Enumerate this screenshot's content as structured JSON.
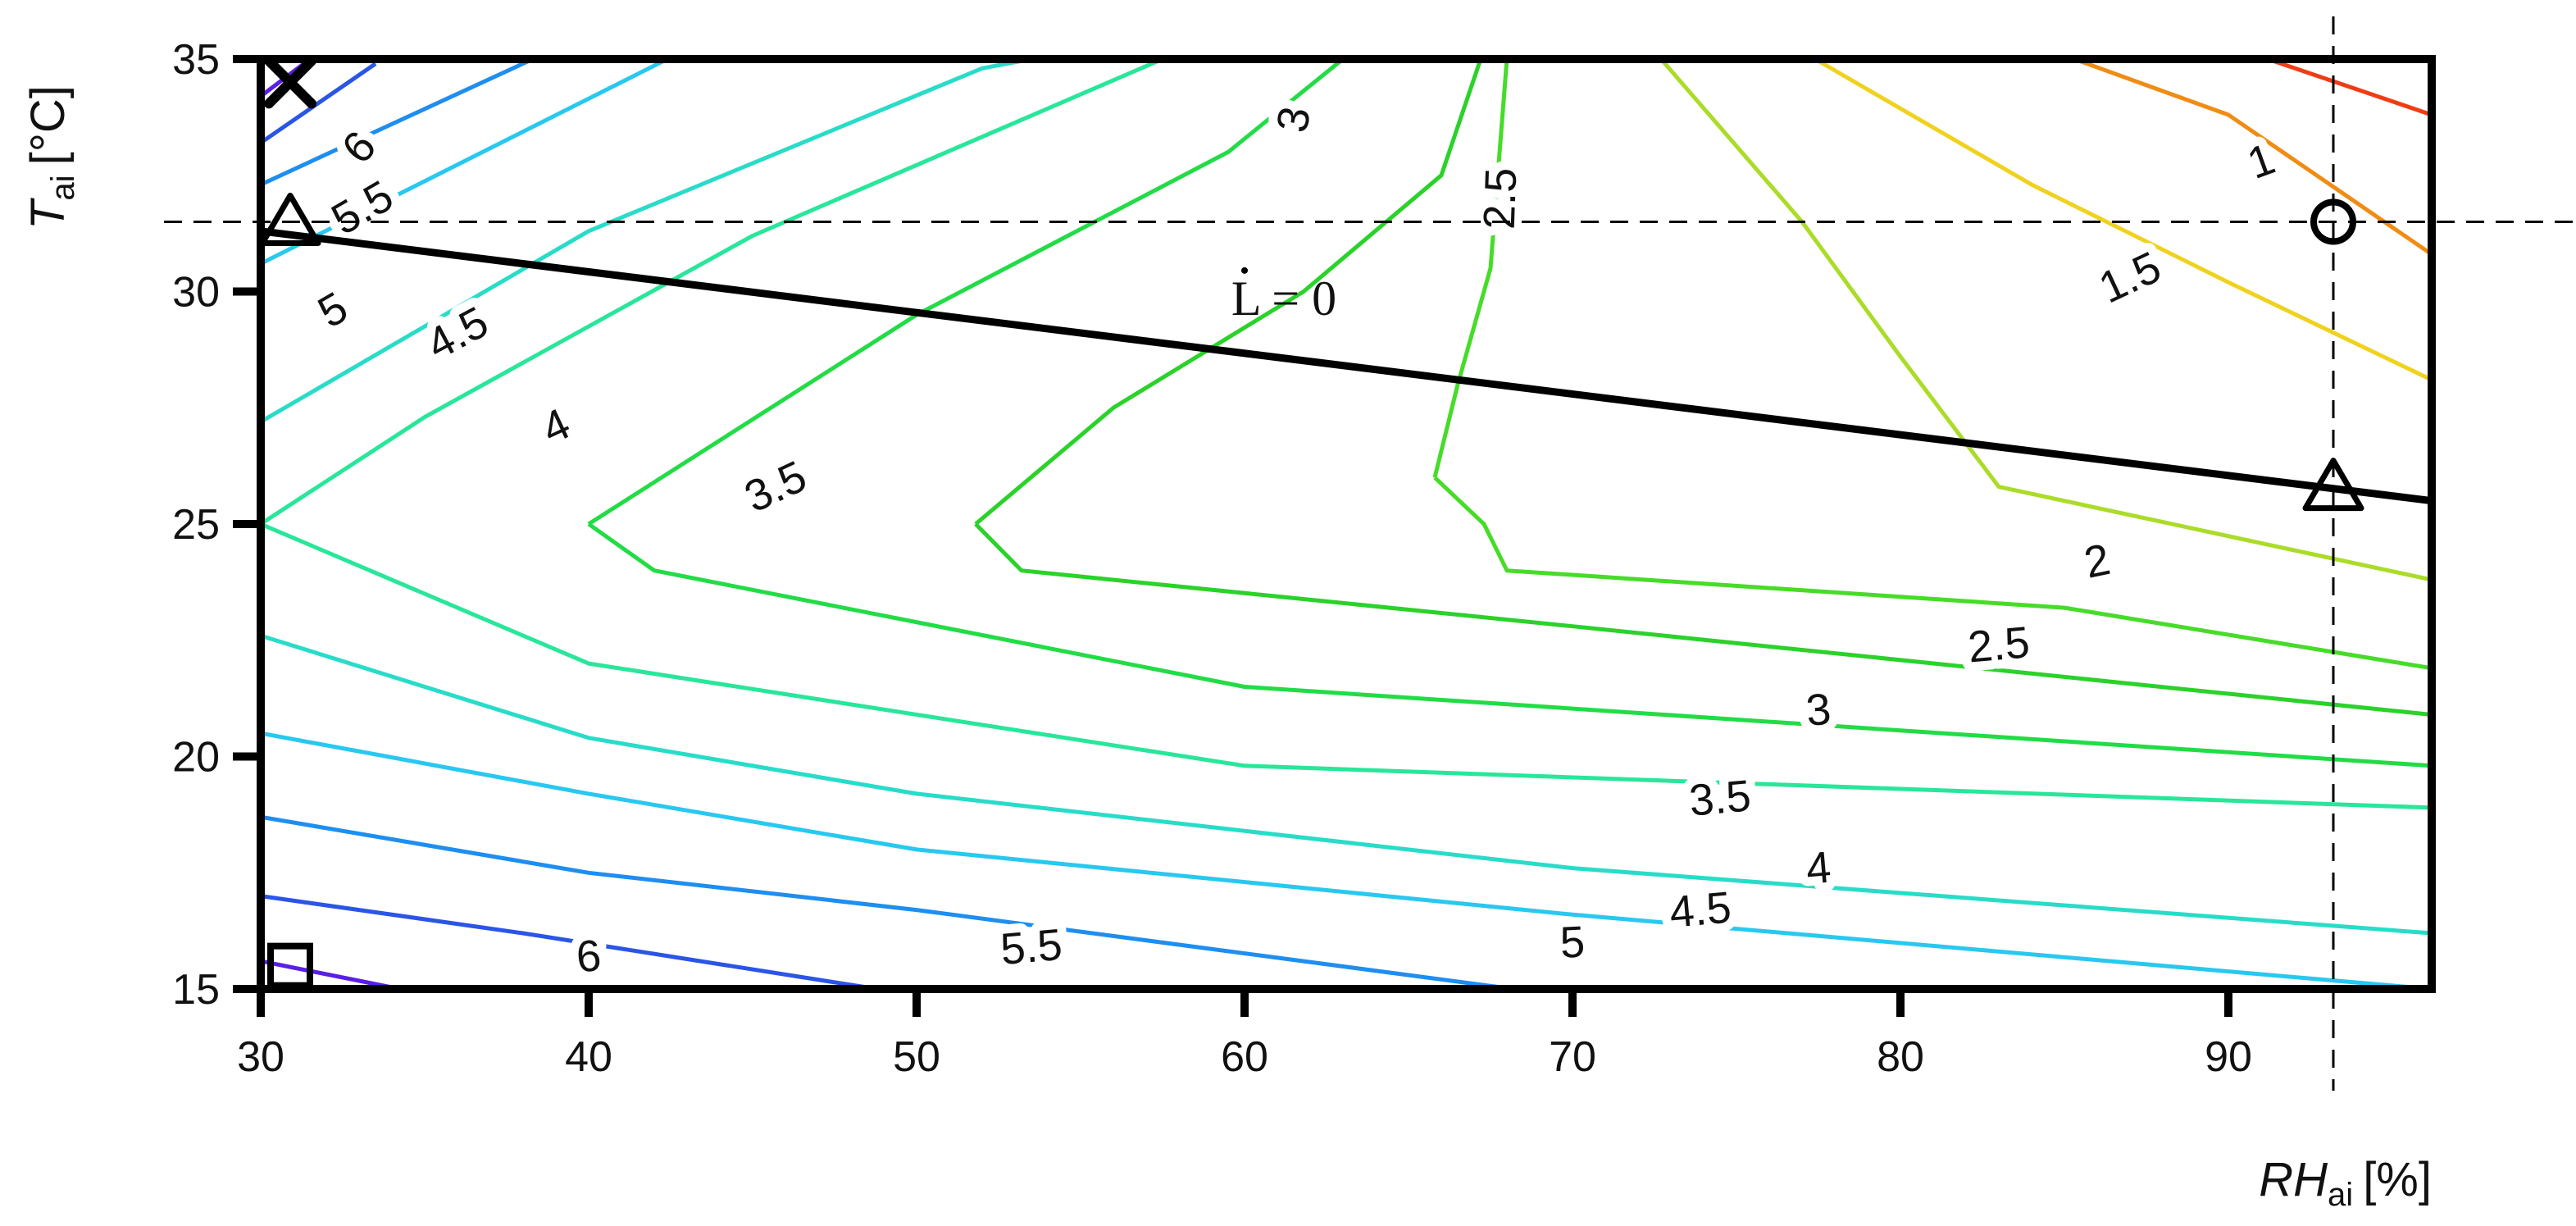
{
  "chart_data": {
    "type": "contour",
    "title": "",
    "xlabel": {
      "main": "RH",
      "sub": "ai",
      "unit": "[%]"
    },
    "ylabel": {
      "main": "T",
      "sub": "ai",
      "unit": "[°C]"
    },
    "xlim": [
      30,
      96.2
    ],
    "ylim": [
      15,
      35
    ],
    "xticks": [
      30,
      40,
      50,
      60,
      70,
      80,
      90
    ],
    "yticks": [
      15,
      20,
      25,
      30,
      35
    ],
    "xtick_labels": [
      "30",
      "40",
      "50",
      "60",
      "70",
      "80",
      "90"
    ],
    "ytick_labels": [
      "15",
      "20",
      "25",
      "30",
      "35"
    ],
    "grid": false,
    "levels": [
      {
        "level": 6.5,
        "color": "#5a1ee6",
        "points": [
          [
            30.0,
            34.2
          ],
          [
            31.5,
            35.0
          ]
        ]
      },
      {
        "level": 6.5,
        "color": "#5a1ee6",
        "points": [
          [
            30.0,
            15.6
          ],
          [
            34.6,
            14.95
          ]
        ]
      },
      {
        "level": 6,
        "color": "#2a55e6",
        "points": [
          [
            30.0,
            33.2
          ],
          [
            33.5,
            34.9
          ]
        ]
      },
      {
        "level": 6,
        "color": "#2a55e6",
        "points": [
          [
            30.0,
            17.0
          ],
          [
            38.0,
            16.2
          ],
          [
            48.8,
            15.0
          ]
        ]
      },
      {
        "level": 5.5,
        "color": "#1e8ef0",
        "points": [
          [
            30.0,
            32.3
          ],
          [
            38.3,
            35.0
          ]
        ]
      },
      {
        "level": 5.5,
        "color": "#1e8ef0",
        "points": [
          [
            30.0,
            18.7
          ],
          [
            40.0,
            17.5
          ],
          [
            50.0,
            16.7
          ],
          [
            68.2,
            15.0
          ]
        ]
      },
      {
        "level": 5,
        "color": "#28c8f0",
        "points": [
          [
            30.0,
            30.6
          ],
          [
            42.4,
            35.0
          ]
        ]
      },
      {
        "level": 5,
        "color": "#28c8f0",
        "points": [
          [
            30.0,
            20.5
          ],
          [
            40.0,
            19.2
          ],
          [
            50.0,
            18.0
          ],
          [
            70.0,
            16.6
          ],
          [
            96.2,
            15.0
          ]
        ]
      },
      {
        "level": 4.5,
        "color": "#28dcc8",
        "points": [
          [
            30.0,
            27.2
          ],
          [
            40.0,
            31.3
          ],
          [
            52.0,
            34.8
          ],
          [
            53.5,
            35.0
          ]
        ]
      },
      {
        "level": 4.5,
        "color": "#28dcc8",
        "points": [
          [
            30.0,
            22.6
          ],
          [
            40.0,
            20.4
          ],
          [
            50.0,
            19.2
          ],
          [
            70.0,
            17.6
          ],
          [
            96.2,
            16.2
          ]
        ]
      },
      {
        "level": 4,
        "color": "#28e69a",
        "points": [
          [
            30.0,
            25.0
          ],
          [
            35.0,
            27.3
          ],
          [
            45.0,
            31.2
          ],
          [
            57.5,
            35.0
          ]
        ]
      },
      {
        "level": 4,
        "color": "#28e69a",
        "points": [
          [
            30.0,
            25.0
          ],
          [
            40.0,
            22.0
          ],
          [
            60.0,
            19.8
          ],
          [
            96.2,
            18.9
          ]
        ]
      },
      {
        "level": 3.5,
        "color": "#22dc46",
        "points": [
          [
            40.0,
            25.0
          ],
          [
            50.0,
            29.5
          ],
          [
            59.5,
            33.0
          ],
          [
            63.0,
            35.0
          ]
        ]
      },
      {
        "level": 3.5,
        "color": "#22dc46",
        "points": [
          [
            40.0,
            25.0
          ],
          [
            42.0,
            24.0
          ],
          [
            60.0,
            21.5
          ],
          [
            96.2,
            19.8
          ]
        ]
      },
      {
        "level": 3,
        "color": "#2ad22a",
        "points": [
          [
            51.8,
            25.0
          ],
          [
            56.0,
            27.5
          ],
          [
            61.8,
            30.0
          ],
          [
            66.0,
            32.5
          ],
          [
            67.2,
            35.0
          ]
        ]
      },
      {
        "level": 3,
        "color": "#2ad22a",
        "points": [
          [
            51.8,
            25.0
          ],
          [
            53.2,
            24.0
          ],
          [
            70.0,
            22.8
          ],
          [
            96.2,
            20.9
          ]
        ]
      },
      {
        "level": 2.5,
        "color": "#46dc28",
        "points": [
          [
            65.8,
            26.0
          ],
          [
            66.5,
            28.0
          ],
          [
            67.5,
            30.5
          ],
          [
            68.0,
            35.0
          ]
        ]
      },
      {
        "level": 2.5,
        "color": "#46dc28",
        "points": [
          [
            65.8,
            26.0
          ],
          [
            67.3,
            25.0
          ],
          [
            68.0,
            24.0
          ],
          [
            85.0,
            23.2
          ],
          [
            96.2,
            21.9
          ]
        ]
      },
      {
        "level": 2,
        "color": "#aadc28",
        "points": [
          [
            72.7,
            35.0
          ],
          [
            77.0,
            31.5
          ],
          [
            80.0,
            28.6
          ],
          [
            83.0,
            25.8
          ],
          [
            96.2,
            23.8
          ]
        ]
      },
      {
        "level": 1.5,
        "color": "#f0d21e",
        "points": [
          [
            77.4,
            35.0
          ],
          [
            84.0,
            32.3
          ],
          [
            90.0,
            30.2
          ],
          [
            96.2,
            28.1
          ]
        ]
      },
      {
        "level": 1,
        "color": "#f08c14",
        "points": [
          [
            85.3,
            35.0
          ],
          [
            90.0,
            33.8
          ],
          [
            96.2,
            30.8
          ]
        ]
      },
      {
        "level": 0.5,
        "color": "#f03c14",
        "points": [
          [
            91.2,
            35.0
          ],
          [
            96.2,
            33.8
          ]
        ]
      }
    ],
    "contour_labels": [
      {
        "text": "6",
        "x": 33.0,
        "y": 33.1,
        "rot": -48
      },
      {
        "text": "5.5",
        "x": 33.1,
        "y": 31.8,
        "rot": -30
      },
      {
        "text": "5",
        "x": 32.2,
        "y": 29.6,
        "rot": -30
      },
      {
        "text": "4.5",
        "x": 36.0,
        "y": 29.1,
        "rot": -28
      },
      {
        "text": "4",
        "x": 39.0,
        "y": 27.1,
        "rot": -25
      },
      {
        "text": "3.5",
        "x": 45.7,
        "y": 25.8,
        "rot": -25
      },
      {
        "text": "3",
        "x": 61.5,
        "y": 33.7,
        "rot": -80
      },
      {
        "text": "2.5",
        "x": 67.8,
        "y": 32.0,
        "rot": -88
      },
      {
        "text": "2",
        "x": 86.0,
        "y": 24.2,
        "rot": -12
      },
      {
        "text": "1.5",
        "x": 87.0,
        "y": 30.3,
        "rot": -25
      },
      {
        "text": "1",
        "x": 91.0,
        "y": 32.8,
        "rot": -20
      },
      {
        "text": "2.5",
        "x": 83.0,
        "y": 22.4,
        "rot": -5
      },
      {
        "text": "3",
        "x": 77.5,
        "y": 21.0,
        "rot": -5
      },
      {
        "text": "3.5",
        "x": 74.5,
        "y": 19.1,
        "rot": -5
      },
      {
        "text": "4",
        "x": 77.5,
        "y": 17.6,
        "rot": -5
      },
      {
        "text": "4.5",
        "x": 73.9,
        "y": 16.7,
        "rot": -5
      },
      {
        "text": "5",
        "x": 70.0,
        "y": 16.0,
        "rot": -3
      },
      {
        "text": "5.5",
        "x": 53.5,
        "y": 15.9,
        "rot": -5
      },
      {
        "text": "6",
        "x": 40.0,
        "y": 15.7,
        "rot": -5
      }
    ],
    "reference_lines": {
      "horizontal_dashed_y": 31.5,
      "vertical_dashed_x": 93.2,
      "zero_line": {
        "label": "L = 0",
        "points": [
          [
            30.0,
            31.3
          ],
          [
            96.2,
            25.5
          ]
        ],
        "label_x": 61.2,
        "label_y": 29.5
      }
    },
    "markers": [
      {
        "symbol": "cross",
        "x": 30.9,
        "y": 34.5
      },
      {
        "symbol": "triangle",
        "x": 30.9,
        "y": 31.5
      },
      {
        "symbol": "triangle",
        "x": 93.2,
        "y": 25.8
      },
      {
        "symbol": "circle",
        "x": 93.2,
        "y": 31.5
      },
      {
        "symbol": "square",
        "x": 30.9,
        "y": 15.5
      }
    ]
  }
}
